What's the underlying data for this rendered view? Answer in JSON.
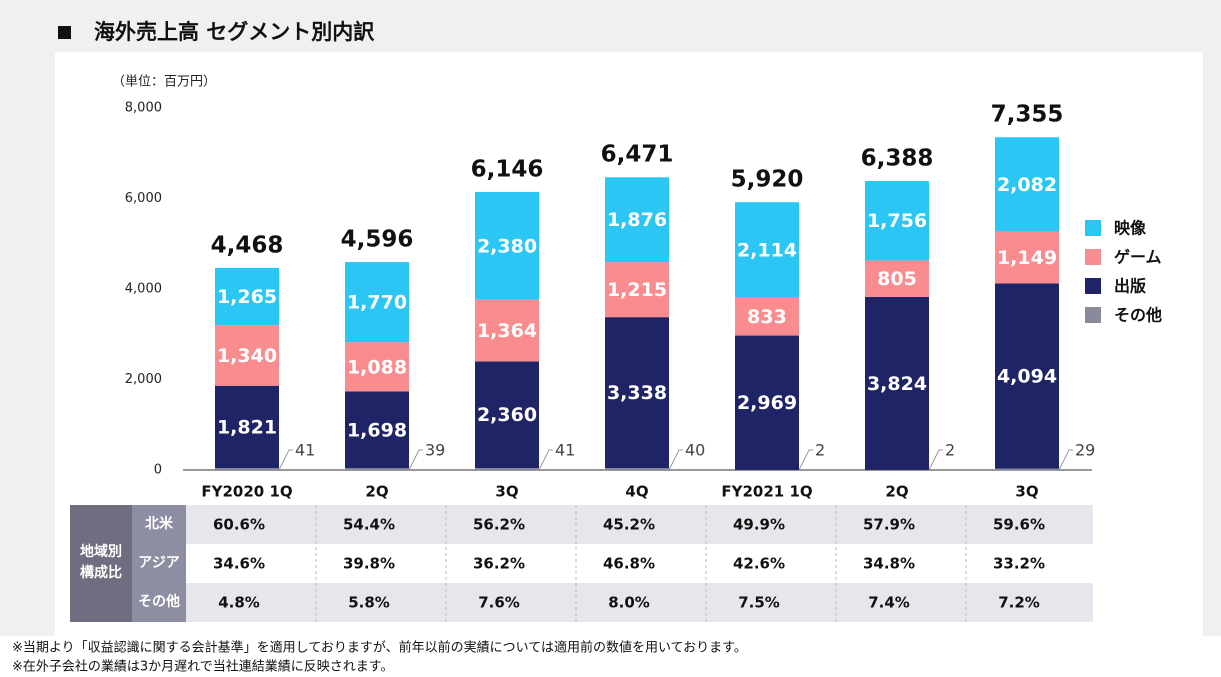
{
  "chart_data": {
    "type": "stacked-bar",
    "title": "海外売上高 セグメント別内訳",
    "unit_label": "（単位：百万円）",
    "categories": [
      "FY2020 1Q",
      "2Q",
      "3Q",
      "4Q",
      "FY2021 1Q",
      "2Q",
      "3Q"
    ],
    "series": [
      {
        "name": "その他",
        "color": "#8a8a9e",
        "values": [
          41,
          39,
          41,
          40,
          2,
          2,
          29
        ]
      },
      {
        "name": "出版",
        "color": "#1f2466",
        "values": [
          1821,
          1698,
          2360,
          3338,
          2969,
          3824,
          4094
        ],
        "value_labels": [
          "1,821",
          "1,698",
          "2,360",
          "3,338",
          "2,969",
          "3,824",
          "4,094"
        ]
      },
      {
        "name": "ゲーム",
        "color": "#f98c8f",
        "values": [
          1340,
          1088,
          1364,
          1215,
          833,
          805,
          1149
        ],
        "value_labels": [
          "1,340",
          "1,088",
          "1,364",
          "1,215",
          "833",
          "805",
          "1,149"
        ]
      },
      {
        "name": "映像",
        "color": "#2cc6f5",
        "values": [
          1265,
          1770,
          2380,
          1876,
          2114,
          1756,
          2082
        ],
        "value_labels": [
          "1,265",
          "1,770",
          "2,380",
          "1,876",
          "2,114",
          "1,756",
          "2,082"
        ]
      }
    ],
    "totals": [
      4468,
      4596,
      6146,
      6471,
      5920,
      6388,
      7355
    ],
    "total_labels": [
      "4,468",
      "4,596",
      "6,146",
      "6,471",
      "5,920",
      "6,388",
      "7,355"
    ],
    "ylim": [
      0,
      8000
    ],
    "yticks": [
      0,
      {
        "value": 2000,
        "label": "2,000"
      },
      {
        "value": 4000,
        "label": "4,000"
      },
      {
        "value": 6000,
        "label": "6,000"
      },
      {
        "value": 8000,
        "label": "8,000"
      }
    ],
    "grid": false,
    "legend": "right"
  },
  "table": {
    "group_label": [
      "地域別",
      "構成比"
    ],
    "rows": [
      {
        "label": "北米",
        "values": [
          "60.6%",
          "54.4%",
          "56.2%",
          "45.2%",
          "49.9%",
          "57.9%",
          "59.6%"
        ]
      },
      {
        "label": "アジア",
        "values": [
          "34.6%",
          "39.8%",
          "36.2%",
          "46.8%",
          "42.6%",
          "34.8%",
          "33.2%"
        ]
      },
      {
        "label": "その他",
        "values": [
          "4.8%",
          "5.8%",
          "7.6%",
          "8.0%",
          "7.5%",
          "7.4%",
          "7.2%"
        ]
      }
    ]
  },
  "notes": [
    "※当期より「収益認識に関する会計基準」を適用しておりますが、前年以前の実績については適用前の数値を用いております。",
    "※在外子会社の業績は3か月遅れで当社連結業績に反映されます。"
  ]
}
